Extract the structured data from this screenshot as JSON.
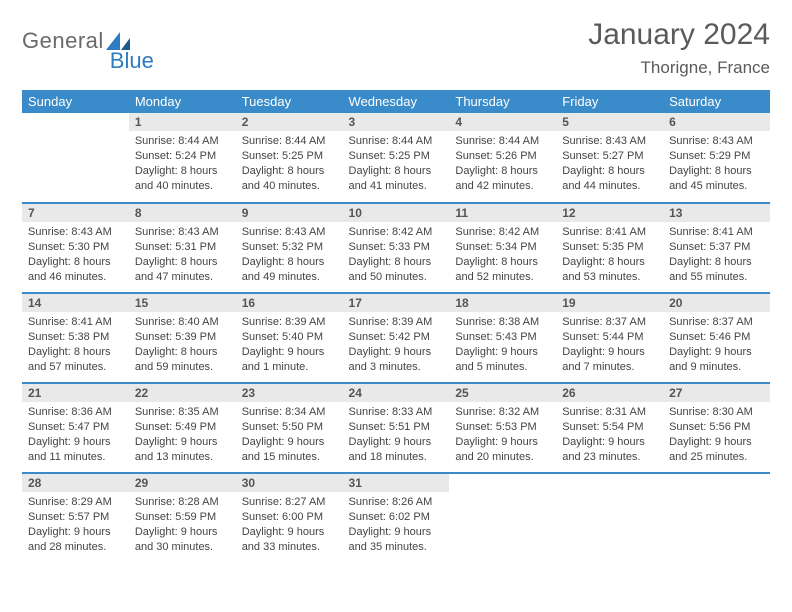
{
  "brand": {
    "name_part1": "General",
    "name_part2": "Blue"
  },
  "title": "January 2024",
  "location": "Thorigne, France",
  "colors": {
    "header_bg": "#3a8bc9",
    "header_text": "#ffffff",
    "daynum_bg": "#e9e9e9",
    "text": "#444444",
    "title_text": "#5a5a5a",
    "brand_gray": "#6a6a6a",
    "brand_blue": "#2d7cc1",
    "row_border": "#3a8bc9"
  },
  "weekdays": [
    "Sunday",
    "Monday",
    "Tuesday",
    "Wednesday",
    "Thursday",
    "Friday",
    "Saturday"
  ],
  "weeks": [
    [
      {
        "empty": true
      },
      {
        "n": "1",
        "sunrise": "Sunrise: 8:44 AM",
        "sunset": "Sunset: 5:24 PM",
        "daylight1": "Daylight: 8 hours",
        "daylight2": "and 40 minutes."
      },
      {
        "n": "2",
        "sunrise": "Sunrise: 8:44 AM",
        "sunset": "Sunset: 5:25 PM",
        "daylight1": "Daylight: 8 hours",
        "daylight2": "and 40 minutes."
      },
      {
        "n": "3",
        "sunrise": "Sunrise: 8:44 AM",
        "sunset": "Sunset: 5:25 PM",
        "daylight1": "Daylight: 8 hours",
        "daylight2": "and 41 minutes."
      },
      {
        "n": "4",
        "sunrise": "Sunrise: 8:44 AM",
        "sunset": "Sunset: 5:26 PM",
        "daylight1": "Daylight: 8 hours",
        "daylight2": "and 42 minutes."
      },
      {
        "n": "5",
        "sunrise": "Sunrise: 8:43 AM",
        "sunset": "Sunset: 5:27 PM",
        "daylight1": "Daylight: 8 hours",
        "daylight2": "and 44 minutes."
      },
      {
        "n": "6",
        "sunrise": "Sunrise: 8:43 AM",
        "sunset": "Sunset: 5:29 PM",
        "daylight1": "Daylight: 8 hours",
        "daylight2": "and 45 minutes."
      }
    ],
    [
      {
        "n": "7",
        "sunrise": "Sunrise: 8:43 AM",
        "sunset": "Sunset: 5:30 PM",
        "daylight1": "Daylight: 8 hours",
        "daylight2": "and 46 minutes."
      },
      {
        "n": "8",
        "sunrise": "Sunrise: 8:43 AM",
        "sunset": "Sunset: 5:31 PM",
        "daylight1": "Daylight: 8 hours",
        "daylight2": "and 47 minutes."
      },
      {
        "n": "9",
        "sunrise": "Sunrise: 8:43 AM",
        "sunset": "Sunset: 5:32 PM",
        "daylight1": "Daylight: 8 hours",
        "daylight2": "and 49 minutes."
      },
      {
        "n": "10",
        "sunrise": "Sunrise: 8:42 AM",
        "sunset": "Sunset: 5:33 PM",
        "daylight1": "Daylight: 8 hours",
        "daylight2": "and 50 minutes."
      },
      {
        "n": "11",
        "sunrise": "Sunrise: 8:42 AM",
        "sunset": "Sunset: 5:34 PM",
        "daylight1": "Daylight: 8 hours",
        "daylight2": "and 52 minutes."
      },
      {
        "n": "12",
        "sunrise": "Sunrise: 8:41 AM",
        "sunset": "Sunset: 5:35 PM",
        "daylight1": "Daylight: 8 hours",
        "daylight2": "and 53 minutes."
      },
      {
        "n": "13",
        "sunrise": "Sunrise: 8:41 AM",
        "sunset": "Sunset: 5:37 PM",
        "daylight1": "Daylight: 8 hours",
        "daylight2": "and 55 minutes."
      }
    ],
    [
      {
        "n": "14",
        "sunrise": "Sunrise: 8:41 AM",
        "sunset": "Sunset: 5:38 PM",
        "daylight1": "Daylight: 8 hours",
        "daylight2": "and 57 minutes."
      },
      {
        "n": "15",
        "sunrise": "Sunrise: 8:40 AM",
        "sunset": "Sunset: 5:39 PM",
        "daylight1": "Daylight: 8 hours",
        "daylight2": "and 59 minutes."
      },
      {
        "n": "16",
        "sunrise": "Sunrise: 8:39 AM",
        "sunset": "Sunset: 5:40 PM",
        "daylight1": "Daylight: 9 hours",
        "daylight2": "and 1 minute."
      },
      {
        "n": "17",
        "sunrise": "Sunrise: 8:39 AM",
        "sunset": "Sunset: 5:42 PM",
        "daylight1": "Daylight: 9 hours",
        "daylight2": "and 3 minutes."
      },
      {
        "n": "18",
        "sunrise": "Sunrise: 8:38 AM",
        "sunset": "Sunset: 5:43 PM",
        "daylight1": "Daylight: 9 hours",
        "daylight2": "and 5 minutes."
      },
      {
        "n": "19",
        "sunrise": "Sunrise: 8:37 AM",
        "sunset": "Sunset: 5:44 PM",
        "daylight1": "Daylight: 9 hours",
        "daylight2": "and 7 minutes."
      },
      {
        "n": "20",
        "sunrise": "Sunrise: 8:37 AM",
        "sunset": "Sunset: 5:46 PM",
        "daylight1": "Daylight: 9 hours",
        "daylight2": "and 9 minutes."
      }
    ],
    [
      {
        "n": "21",
        "sunrise": "Sunrise: 8:36 AM",
        "sunset": "Sunset: 5:47 PM",
        "daylight1": "Daylight: 9 hours",
        "daylight2": "and 11 minutes."
      },
      {
        "n": "22",
        "sunrise": "Sunrise: 8:35 AM",
        "sunset": "Sunset: 5:49 PM",
        "daylight1": "Daylight: 9 hours",
        "daylight2": "and 13 minutes."
      },
      {
        "n": "23",
        "sunrise": "Sunrise: 8:34 AM",
        "sunset": "Sunset: 5:50 PM",
        "daylight1": "Daylight: 9 hours",
        "daylight2": "and 15 minutes."
      },
      {
        "n": "24",
        "sunrise": "Sunrise: 8:33 AM",
        "sunset": "Sunset: 5:51 PM",
        "daylight1": "Daylight: 9 hours",
        "daylight2": "and 18 minutes."
      },
      {
        "n": "25",
        "sunrise": "Sunrise: 8:32 AM",
        "sunset": "Sunset: 5:53 PM",
        "daylight1": "Daylight: 9 hours",
        "daylight2": "and 20 minutes."
      },
      {
        "n": "26",
        "sunrise": "Sunrise: 8:31 AM",
        "sunset": "Sunset: 5:54 PM",
        "daylight1": "Daylight: 9 hours",
        "daylight2": "and 23 minutes."
      },
      {
        "n": "27",
        "sunrise": "Sunrise: 8:30 AM",
        "sunset": "Sunset: 5:56 PM",
        "daylight1": "Daylight: 9 hours",
        "daylight2": "and 25 minutes."
      }
    ],
    [
      {
        "n": "28",
        "sunrise": "Sunrise: 8:29 AM",
        "sunset": "Sunset: 5:57 PM",
        "daylight1": "Daylight: 9 hours",
        "daylight2": "and 28 minutes."
      },
      {
        "n": "29",
        "sunrise": "Sunrise: 8:28 AM",
        "sunset": "Sunset: 5:59 PM",
        "daylight1": "Daylight: 9 hours",
        "daylight2": "and 30 minutes."
      },
      {
        "n": "30",
        "sunrise": "Sunrise: 8:27 AM",
        "sunset": "Sunset: 6:00 PM",
        "daylight1": "Daylight: 9 hours",
        "daylight2": "and 33 minutes."
      },
      {
        "n": "31",
        "sunrise": "Sunrise: 8:26 AM",
        "sunset": "Sunset: 6:02 PM",
        "daylight1": "Daylight: 9 hours",
        "daylight2": "and 35 minutes."
      },
      {
        "empty": true
      },
      {
        "empty": true
      },
      {
        "empty": true
      }
    ]
  ]
}
